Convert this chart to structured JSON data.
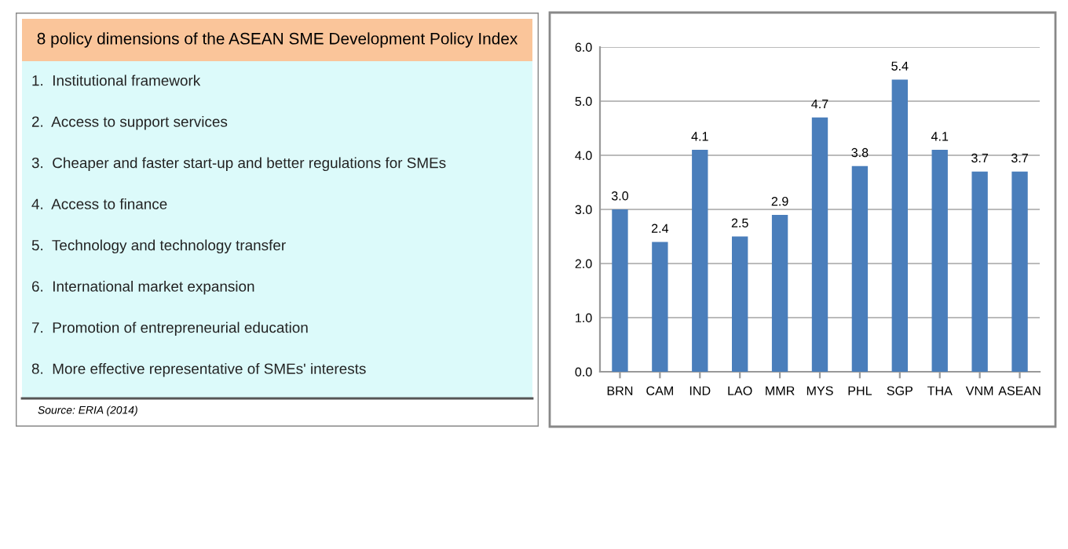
{
  "chart_data": [
    {
      "type": "other",
      "title": "8 policy dimensions of the ASEAN SME Development Policy Index",
      "annotations": [
        "1.  Institutional framework",
        "2.  Access to support services",
        "3.  Cheaper and faster start-up and better regulations for SMEs",
        "4.  Access to finance",
        "5.  Technology and technology transfer",
        "6.  International market expansion",
        "7.  Promotion of entrepreneurial education",
        "8.  More effective representative of SMEs' interests",
        "Source: ERIA (2014)"
      ]
    },
    {
      "type": "bar",
      "categories": [
        "BRN",
        "CAM",
        "IND",
        "LAO",
        "MMR",
        "MYS",
        "PHL",
        "SGP",
        "THA",
        "VNM",
        "ASEAN"
      ],
      "values": [
        3.0,
        2.4,
        4.1,
        2.5,
        2.9,
        4.7,
        3.8,
        5.4,
        4.1,
        3.7,
        3.7
      ],
      "value_labels": [
        "3.0",
        "2.4",
        "4.1",
        "2.5",
        "2.9",
        "4.7",
        "3.8",
        "5.4",
        "4.1",
        "3.7",
        "3.7"
      ],
      "color": "#4a7ebb",
      "ylim": [
        0,
        6
      ],
      "yticks": [
        {
          "value": 0,
          "label": "0.0"
        },
        {
          "value": 1,
          "label": "1.0"
        },
        {
          "value": 2,
          "label": "2.0"
        },
        {
          "value": 3,
          "label": "3.0"
        },
        {
          "value": 4,
          "label": "4.0"
        },
        {
          "value": 5,
          "label": "5.0"
        },
        {
          "value": 6,
          "label": "6.0"
        }
      ],
      "grid": "y"
    }
  ]
}
